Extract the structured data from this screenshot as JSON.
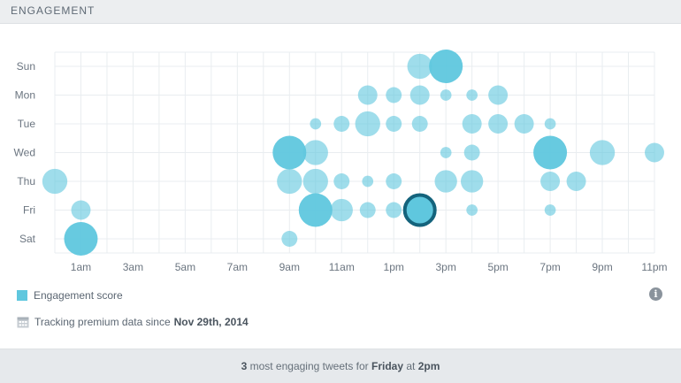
{
  "header": {
    "title": "ENGAGEMENT"
  },
  "legend": {
    "label": "Engagement score"
  },
  "tracking": {
    "prefix": "Tracking premium data since",
    "date": "Nov 29th, 2014"
  },
  "footer": {
    "count": "3",
    "middle": "most engaging tweets for",
    "day": "Friday",
    "at": "at",
    "time": "2pm"
  },
  "colors": {
    "bubble": "#5fc7de",
    "highlight_border": "#14637c",
    "grid": "#e9edf0"
  },
  "icons": {
    "info": "info-icon",
    "tracking": "calendar-icon"
  },
  "chart_data": {
    "type": "scatter",
    "title": "",
    "xlabel": "",
    "ylabel": "",
    "x_ticks": [
      "1am",
      "3am",
      "5am",
      "7am",
      "9am",
      "11am",
      "1pm",
      "3pm",
      "5pm",
      "7pm",
      "9pm",
      "11pm"
    ],
    "y_ticks": [
      "Sun",
      "Mon",
      "Tue",
      "Wed",
      "Thu",
      "Fri",
      "Sat"
    ],
    "hours": [
      0,
      1,
      2,
      3,
      4,
      5,
      6,
      7,
      8,
      9,
      10,
      11,
      12,
      13,
      14,
      15,
      16,
      17,
      18,
      19,
      20,
      21,
      22,
      23
    ],
    "grid": true,
    "legend": "bottom-left",
    "size_metric": "Engagement score",
    "points": [
      {
        "day": "Sun",
        "hour": 14,
        "score": 5
      },
      {
        "day": "Sun",
        "hour": 15,
        "score": 9
      },
      {
        "day": "Mon",
        "hour": 12,
        "score": 3
      },
      {
        "day": "Mon",
        "hour": 13,
        "score": 2
      },
      {
        "day": "Mon",
        "hour": 14,
        "score": 3
      },
      {
        "day": "Mon",
        "hour": 15,
        "score": 1
      },
      {
        "day": "Mon",
        "hour": 16,
        "score": 1
      },
      {
        "day": "Mon",
        "hour": 17,
        "score": 3
      },
      {
        "day": "Tue",
        "hour": 10,
        "score": 1
      },
      {
        "day": "Tue",
        "hour": 11,
        "score": 2
      },
      {
        "day": "Tue",
        "hour": 12,
        "score": 5
      },
      {
        "day": "Tue",
        "hour": 13,
        "score": 2
      },
      {
        "day": "Tue",
        "hour": 14,
        "score": 2
      },
      {
        "day": "Tue",
        "hour": 16,
        "score": 3
      },
      {
        "day": "Tue",
        "hour": 17,
        "score": 3
      },
      {
        "day": "Tue",
        "hour": 18,
        "score": 3
      },
      {
        "day": "Tue",
        "hour": 19,
        "score": 1
      },
      {
        "day": "Wed",
        "hour": 9,
        "score": 9
      },
      {
        "day": "Wed",
        "hour": 10,
        "score": 5
      },
      {
        "day": "Wed",
        "hour": 15,
        "score": 1
      },
      {
        "day": "Wed",
        "hour": 16,
        "score": 2
      },
      {
        "day": "Wed",
        "hour": 19,
        "score": 9
      },
      {
        "day": "Wed",
        "hour": 21,
        "score": 5
      },
      {
        "day": "Wed",
        "hour": 23,
        "score": 3
      },
      {
        "day": "Thu",
        "hour": 0,
        "score": 5
      },
      {
        "day": "Thu",
        "hour": 9,
        "score": 5
      },
      {
        "day": "Thu",
        "hour": 10,
        "score": 5
      },
      {
        "day": "Thu",
        "hour": 11,
        "score": 2
      },
      {
        "day": "Thu",
        "hour": 12,
        "score": 1
      },
      {
        "day": "Thu",
        "hour": 13,
        "score": 2
      },
      {
        "day": "Thu",
        "hour": 15,
        "score": 4
      },
      {
        "day": "Thu",
        "hour": 16,
        "score": 4
      },
      {
        "day": "Thu",
        "hour": 19,
        "score": 3
      },
      {
        "day": "Thu",
        "hour": 20,
        "score": 3
      },
      {
        "day": "Fri",
        "hour": 1,
        "score": 3
      },
      {
        "day": "Fri",
        "hour": 10,
        "score": 9
      },
      {
        "day": "Fri",
        "hour": 11,
        "score": 4
      },
      {
        "day": "Fri",
        "hour": 12,
        "score": 2
      },
      {
        "day": "Fri",
        "hour": 13,
        "score": 2
      },
      {
        "day": "Fri",
        "hour": 14,
        "score": 9,
        "highlighted": true
      },
      {
        "day": "Fri",
        "hour": 16,
        "score": 1
      },
      {
        "day": "Fri",
        "hour": 19,
        "score": 1
      },
      {
        "day": "Sat",
        "hour": 1,
        "score": 9
      },
      {
        "day": "Sat",
        "hour": 9,
        "score": 2
      }
    ]
  }
}
